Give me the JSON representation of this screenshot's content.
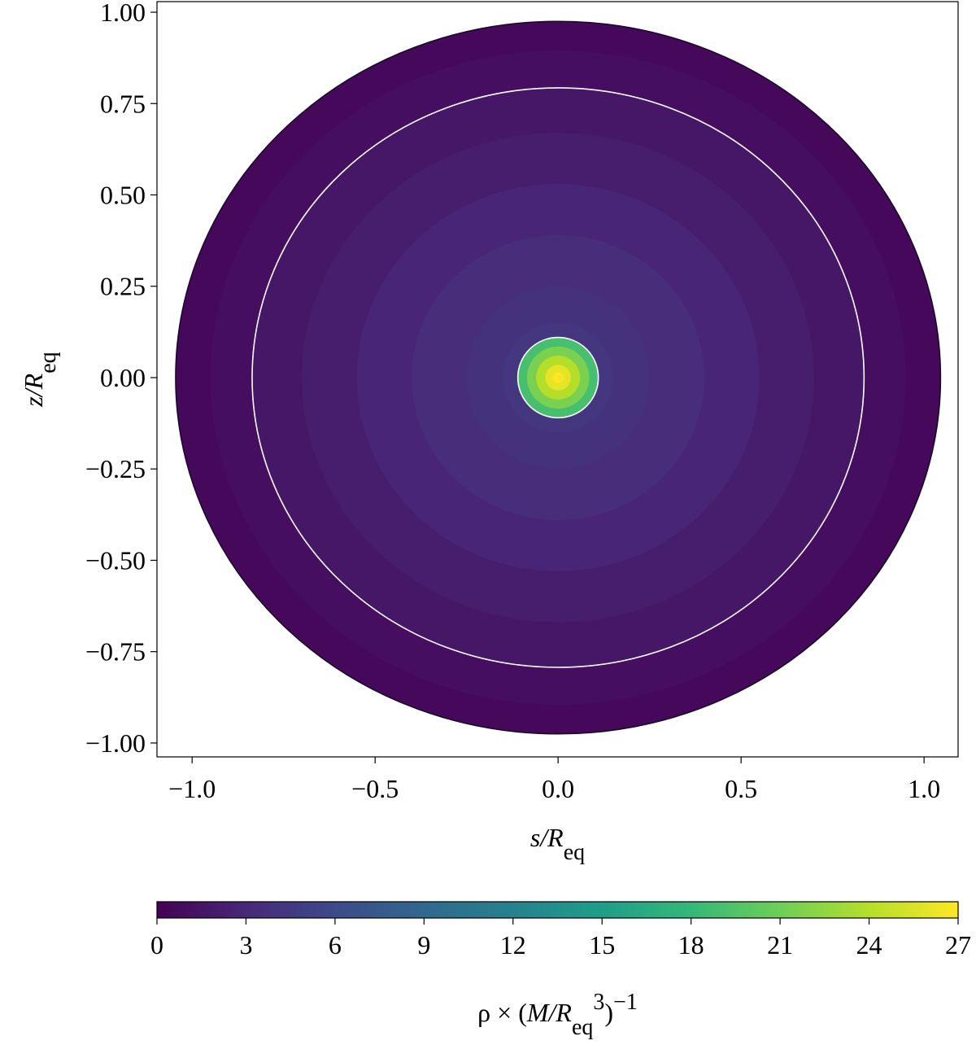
{
  "chart_data": {
    "type": "density-map",
    "colormap": "viridis",
    "xlabel": [
      {
        "text": "s/R",
        "style": "italic"
      },
      {
        "text": "eq",
        "style": "sub"
      }
    ],
    "ylabel": [
      {
        "text": "z/R",
        "style": "italic"
      },
      {
        "text": "eq",
        "style": "sub"
      }
    ],
    "xlim": [
      -1.096,
      1.093
    ],
    "ylim": [
      -1.038,
      1.029
    ],
    "xticks": [
      {
        "value": -1.0,
        "label": "−1.0"
      },
      {
        "value": -0.5,
        "label": "−0.5"
      },
      {
        "value": 0,
        "label": "0.0"
      },
      {
        "value": 0.5,
        "label": "0.5"
      },
      {
        "value": 1.0,
        "label": "1.0"
      }
    ],
    "yticks": [
      {
        "value": -1.0,
        "label": "−1.00"
      },
      {
        "value": -0.75,
        "label": "−0.75"
      },
      {
        "value": -0.5,
        "label": "−0.50"
      },
      {
        "value": -0.25,
        "label": "−0.25"
      },
      {
        "value": 0,
        "label": "0.00"
      },
      {
        "value": 0.25,
        "label": "0.25"
      },
      {
        "value": 0.5,
        "label": "0.50"
      },
      {
        "value": 0.75,
        "label": "0.75"
      },
      {
        "value": 1.0,
        "label": "1.00"
      }
    ],
    "regions": {
      "s_radius": [
        1.045,
        0.95,
        0.836,
        0.7,
        0.55,
        0.4,
        0.25,
        0.15,
        0.11,
        0.085,
        0.06,
        0.035,
        0.015
      ],
      "z_radius": [
        0.975,
        0.895,
        0.793,
        0.67,
        0.53,
        0.39,
        0.25,
        0.15,
        0.11,
        0.085,
        0.06,
        0.035,
        0.015
      ],
      "rho": [
        0.5,
        1.0,
        1.6,
        2.2,
        2.8,
        3.4,
        3.9,
        4.3,
        19,
        21.5,
        24,
        26,
        27
      ]
    },
    "contours": [
      {
        "s_radius": 1.045,
        "z_radius": 0.975,
        "color": "#1a0a2a"
      },
      {
        "s_radius": 0.836,
        "z_radius": 0.793,
        "color": "#ffffff"
      },
      {
        "s_radius": 0.11,
        "z_radius": 0.11,
        "color": "#ffffff"
      }
    ],
    "colorbar": {
      "clim": [
        0,
        27
      ],
      "ticks": [
        0,
        3,
        6,
        9,
        12,
        15,
        18,
        21,
        24,
        27
      ],
      "label": [
        {
          "text": "ρ × ("
        },
        {
          "text": "M/R",
          "style": "italic"
        },
        {
          "text": "eq",
          "style": "sub"
        },
        {
          "text": "3",
          "style": "sup"
        },
        {
          "text": ")"
        },
        {
          "text": "−1",
          "style": "sup"
        }
      ]
    }
  }
}
